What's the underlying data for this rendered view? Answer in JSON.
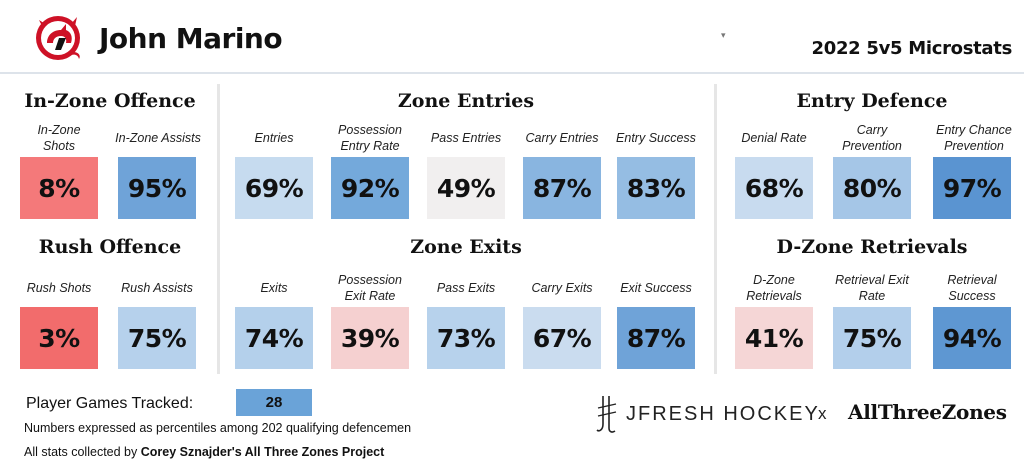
{
  "header": {
    "player_name": "John Marino",
    "subtitle": "2022 5v5 Microstats",
    "dropdown_caret": "▾",
    "logo_icon": "new-jersey-devils-logo"
  },
  "groups": {
    "in_zone_offence": {
      "title": "In-Zone Offence",
      "stats": [
        {
          "label": "In-Zone Shots",
          "value": "8%",
          "percentile": 8,
          "color": "#f4797a"
        },
        {
          "label": "In-Zone Assists",
          "value": "95%",
          "percentile": 95,
          "color": "#6fa3d8"
        }
      ]
    },
    "rush_offence": {
      "title": "Rush Offence",
      "stats": [
        {
          "label": "Rush Shots",
          "value": "3%",
          "percentile": 3,
          "color": "#f26c6c"
        },
        {
          "label": "Rush Assists",
          "value": "75%",
          "percentile": 75,
          "color": "#b6d1ec"
        }
      ]
    },
    "zone_entries": {
      "title": "Zone Entries",
      "stats": [
        {
          "label": "Entries",
          "value": "69%",
          "percentile": 69,
          "color": "#c6dbef"
        },
        {
          "label": "Possession Entry Rate",
          "value": "92%",
          "percentile": 92,
          "color": "#74a9db"
        },
        {
          "label": "Pass Entries",
          "value": "49%",
          "percentile": 49,
          "color": "#f1efef"
        },
        {
          "label": "Carry Entries",
          "value": "87%",
          "percentile": 87,
          "color": "#89b5e0"
        },
        {
          "label": "Entry Success",
          "value": "83%",
          "percentile": 83,
          "color": "#95bde3"
        }
      ]
    },
    "zone_exits": {
      "title": "Zone Exits",
      "stats": [
        {
          "label": "Exits",
          "value": "74%",
          "percentile": 74,
          "color": "#b4d0eb"
        },
        {
          "label": "Possession Exit Rate",
          "value": "39%",
          "percentile": 39,
          "color": "#f5d0d0"
        },
        {
          "label": "Pass Exits",
          "value": "73%",
          "percentile": 73,
          "color": "#b7d2ec"
        },
        {
          "label": "Carry Exits",
          "value": "67%",
          "percentile": 67,
          "color": "#cadcef"
        },
        {
          "label": "Exit Success",
          "value": "87%",
          "percentile": 87,
          "color": "#6fa3d8"
        }
      ]
    },
    "entry_defence": {
      "title": "Entry Defence",
      "stats": [
        {
          "label": "Denial Rate",
          "value": "68%",
          "percentile": 68,
          "color": "#c8dbef"
        },
        {
          "label": "Carry Prevention",
          "value": "80%",
          "percentile": 80,
          "color": "#a5c6e7"
        },
        {
          "label": "Entry Chance Prevention",
          "value": "97%",
          "percentile": 97,
          "color": "#5a94d1"
        }
      ]
    },
    "dzone_retrievals": {
      "title": "D-Zone Retrievals",
      "stats": [
        {
          "label": "D-Zone Retrievals",
          "value": "41%",
          "percentile": 41,
          "color": "#f5d6d6"
        },
        {
          "label": "Retrieval Exit Rate",
          "value": "75%",
          "percentile": 75,
          "color": "#b3cfeb"
        },
        {
          "label": "Retrieval Success",
          "value": "94%",
          "percentile": 94,
          "color": "#5e97d2"
        }
      ]
    }
  },
  "footer": {
    "games_label": "Player Games Tracked:",
    "games_value": "28",
    "note_percentiles": "Numbers expressed as percentiles among 202 qualifying defencemen",
    "note_source_prefix": "All stats collected by ",
    "note_source_bold": "Corey Sznajder's All Three Zones Project",
    "brand_jfresh": "JFRESH HOCKEY",
    "brand_x": "x",
    "brand_atz": "AllThreeZones"
  }
}
